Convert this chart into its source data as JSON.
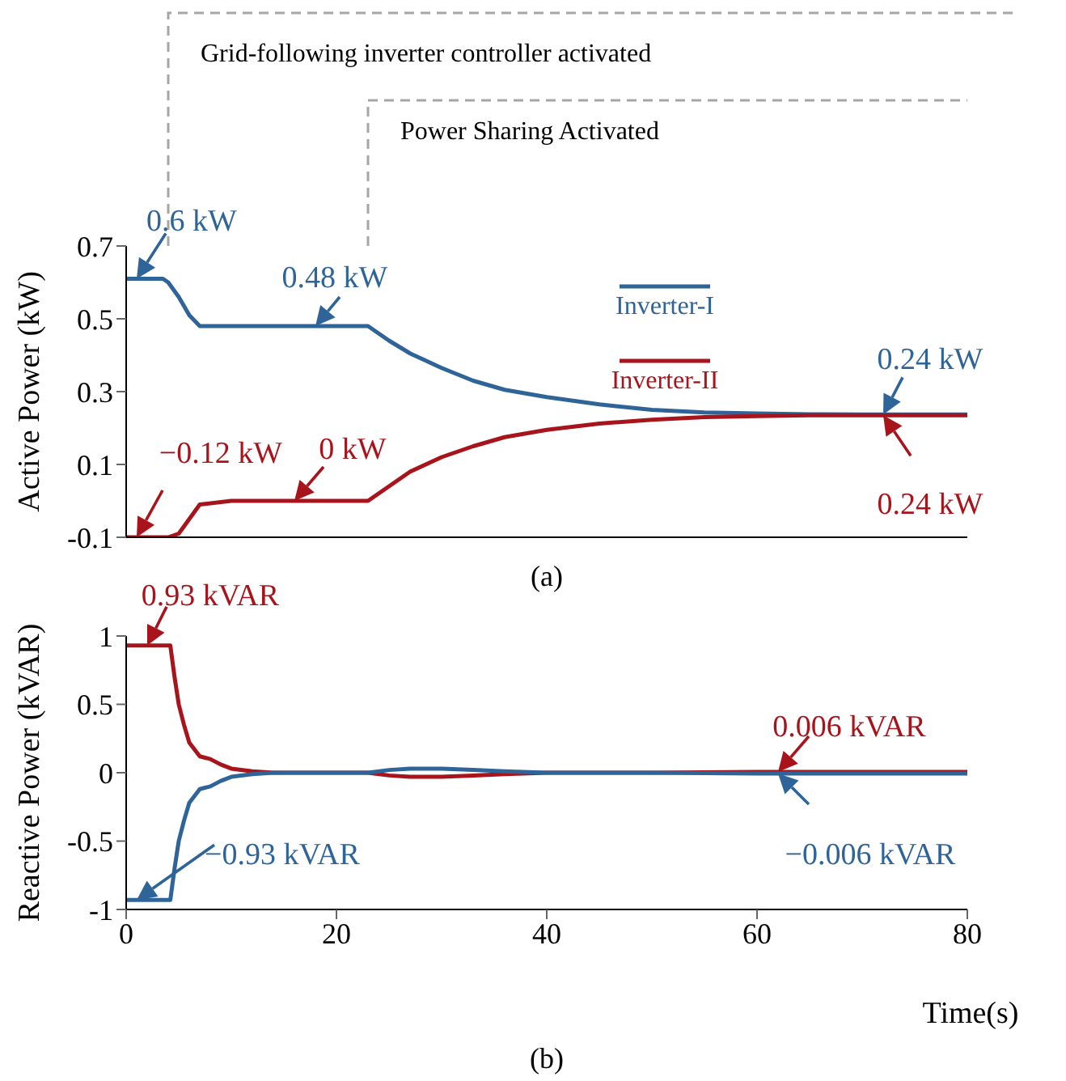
{
  "chart_data": [
    {
      "type": "line",
      "ylabel": "Active Power (kW)",
      "xlim": [
        0,
        80
      ],
      "ylim": [
        -0.1,
        0.7
      ],
      "yticks": [
        -0.1,
        0.1,
        0.3,
        0.5,
        0.7
      ],
      "tick_labels": "y",
      "legend": "top right",
      "series": [
        {
          "name": "Inverter-I",
          "color": "#2f6499",
          "x": [
            0,
            3.5,
            4,
            5,
            6,
            7,
            10,
            15,
            20,
            23,
            25,
            27,
            30,
            33,
            36,
            40,
            45,
            50,
            55,
            60,
            65,
            70,
            75,
            80
          ],
          "values": [
            0.61,
            0.61,
            0.6,
            0.56,
            0.51,
            0.48,
            0.48,
            0.48,
            0.48,
            0.48,
            0.44,
            0.405,
            0.365,
            0.33,
            0.305,
            0.285,
            0.265,
            0.25,
            0.243,
            0.24,
            0.238,
            0.237,
            0.237,
            0.237
          ]
        },
        {
          "name": "Inverter-II",
          "color": "#a8141c",
          "x": [
            0,
            4,
            5,
            6,
            7,
            10,
            15,
            20,
            23,
            25,
            27,
            30,
            33,
            36,
            40,
            45,
            50,
            55,
            60,
            65,
            70,
            75,
            80
          ],
          "values": [
            -0.1,
            -0.1,
            -0.09,
            -0.05,
            -0.01,
            0,
            0,
            0,
            0,
            0.04,
            0.08,
            0.12,
            0.15,
            0.175,
            0.195,
            0.212,
            0.223,
            0.23,
            0.233,
            0.235,
            0.235,
            0.235,
            0.235
          ]
        }
      ],
      "ref_lines": [
        {
          "axis": "x",
          "value": 4,
          "label": "Grid-following inverter controller activated",
          "color": "#a6a6a6",
          "line_style": "dashed"
        },
        {
          "axis": "x",
          "value": 23,
          "label": "Power Sharing Activated",
          "color": "#a6a6a6",
          "line_style": "dashed"
        }
      ],
      "annotations": [
        {
          "text": "0.6 kW",
          "x": 1,
          "y": 0.61
        },
        {
          "text": "0.48 kW",
          "x": 18,
          "y": 0.48
        },
        {
          "text": "−0.12 kW",
          "x": 1,
          "y": -0.1
        },
        {
          "text": "0 kW",
          "x": 16,
          "y": 0
        },
        {
          "text": "0.24 kW",
          "x": 72,
          "y": 0.237
        },
        {
          "text": "0.24 kW",
          "x": 72,
          "y": 0.235
        },
        "(a)"
      ]
    },
    {
      "type": "line",
      "ylabel": "Reactive Power (kVAR)",
      "xlabel": "Time(s)",
      "xlim": [
        0,
        80
      ],
      "xticks": [
        0,
        20,
        40,
        60,
        80
      ],
      "ylim": [
        -1,
        1
      ],
      "yticks": [
        -1,
        -0.5,
        0,
        0.5,
        1
      ],
      "series": [
        {
          "color": "#a8141c",
          "x": [
            0,
            4.2,
            4.6,
            5,
            5.5,
            6,
            7,
            8,
            9,
            10,
            12,
            14,
            20,
            23,
            25,
            27,
            30,
            33,
            36,
            40,
            50,
            60,
            70,
            80
          ],
          "values": [
            0.93,
            0.93,
            0.7,
            0.5,
            0.35,
            0.22,
            0.12,
            0.1,
            0.06,
            0.03,
            0.01,
            0,
            0,
            0,
            -0.02,
            -0.03,
            -0.03,
            -0.02,
            -0.01,
            0,
            0,
            0.006,
            0.006,
            0.006
          ]
        },
        {
          "color": "#2f6499",
          "x": [
            0,
            4.2,
            4.6,
            5,
            5.5,
            6,
            7,
            8,
            9,
            10,
            12,
            14,
            20,
            23,
            25,
            27,
            30,
            33,
            36,
            40,
            50,
            60,
            70,
            80
          ],
          "values": [
            -0.93,
            -0.93,
            -0.7,
            -0.5,
            -0.35,
            -0.22,
            -0.12,
            -0.1,
            -0.06,
            -0.03,
            -0.01,
            0,
            0,
            0,
            0.02,
            0.03,
            0.03,
            0.02,
            0.01,
            0,
            0,
            -0.006,
            -0.006,
            -0.006
          ]
        }
      ],
      "annotations": [
        {
          "text": "0.93 kVAR",
          "x": 2,
          "y": 0.93
        },
        {
          "text": "0.006 kVAR",
          "x": 62,
          "y": 0.006
        },
        {
          "text": "−0.006 kVAR",
          "x": 62,
          "y": -0.006
        },
        {
          "text": "−0.93 kVAR",
          "x": 1,
          "y": -0.93
        },
        "(b)"
      ]
    }
  ]
}
